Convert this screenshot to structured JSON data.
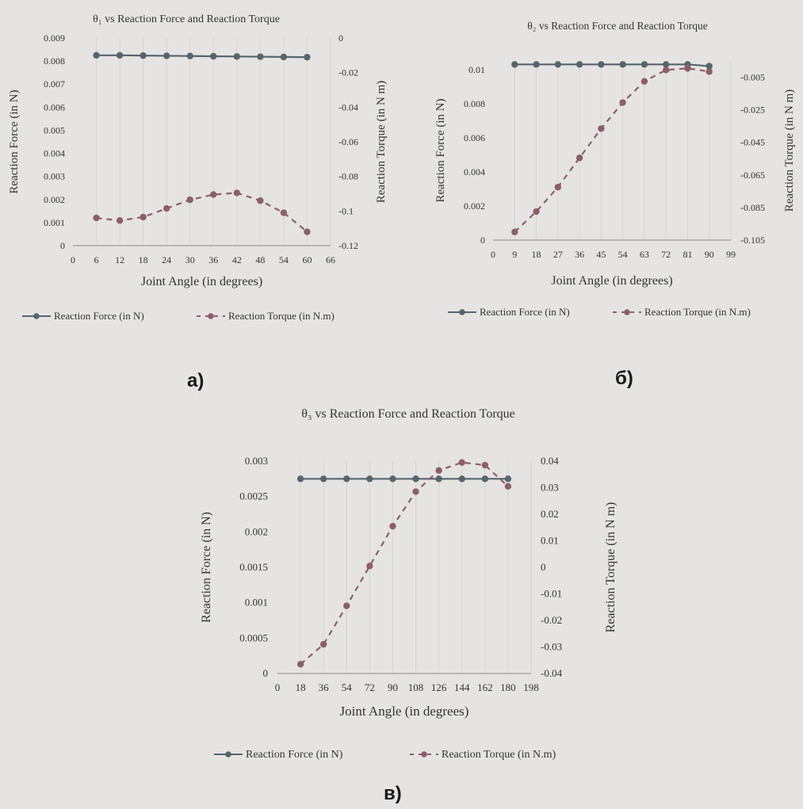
{
  "colors": {
    "force": "#56656c",
    "torque": "#8c5f68",
    "grid": "#d6d5d3",
    "axis": "#8a8a8a"
  },
  "panels": {
    "a": "а)",
    "b": "б)",
    "c": "в)"
  },
  "chart_data": [
    {
      "type": "line",
      "title": "θ₁ vs Reaction Force and Reaction Torque",
      "xlabel": "Joint Angle (in degrees)",
      "ylabel": "Reaction Force (in N)",
      "y2label": "Reaction Torque (in N m)",
      "xlim": [
        0,
        66
      ],
      "xticks": [
        0,
        6,
        12,
        18,
        24,
        30,
        36,
        42,
        48,
        54,
        60,
        66
      ],
      "xtick_labels": [
        "0",
        "6",
        "12",
        "18",
        "24",
        "30",
        "36",
        "42",
        "48",
        "54",
        "60",
        "66"
      ],
      "ylim": [
        0,
        0.009
      ],
      "yticks": [
        0,
        0.001,
        0.002,
        0.003,
        0.004,
        0.005,
        0.006,
        0.007,
        0.008,
        0.009
      ],
      "ytick_labels": [
        "0",
        "0.001",
        "0.002",
        "0.003",
        "0.004",
        "0.005",
        "0.006",
        "0.007",
        "0.008",
        "0.009"
      ],
      "y2lim": [
        -0.12,
        0
      ],
      "y2ticks": [
        -0.12,
        -0.1,
        -0.08,
        -0.06,
        -0.04,
        -0.02,
        0
      ],
      "y2tick_labels": [
        "-0.12",
        "-0.1",
        "-0.08",
        "-0.06",
        "-0.04",
        "-0.02",
        "0"
      ],
      "x": [
        6,
        12,
        18,
        24,
        30,
        36,
        42,
        48,
        54,
        60
      ],
      "series": [
        {
          "name": "Reaction Force (in N)",
          "axis": "left",
          "style": "solid",
          "values": [
            0.00825,
            0.00825,
            0.00824,
            0.00823,
            0.00822,
            0.00821,
            0.0082,
            0.00819,
            0.00818,
            0.00817
          ]
        },
        {
          "name": "Reaction Torque (in N.m)",
          "axis": "right",
          "style": "dashed",
          "values": [
            -0.104,
            -0.1055,
            -0.1035,
            -0.0985,
            -0.0935,
            -0.0905,
            -0.0895,
            -0.094,
            -0.101,
            -0.112
          ]
        }
      ],
      "legend": "bottom",
      "grid": true
    },
    {
      "type": "line",
      "title": "θ₂ vs Reaction Force and Reaction Torque",
      "xlabel": "Joint Angle (in degrees)",
      "ylabel": "Reaction Force (in N)",
      "y2label": "Reaction Torque (in N m)",
      "xlim": [
        0,
        99
      ],
      "xticks": [
        0,
        9,
        18,
        27,
        36,
        45,
        54,
        63,
        72,
        81,
        90,
        99
      ],
      "xtick_labels": [
        "0",
        "9",
        "18",
        "27",
        "36",
        "45",
        "54",
        "63",
        "72",
        "81",
        "90",
        "99"
      ],
      "ylim": [
        0,
        0.0105
      ],
      "yticks": [
        0,
        0.002,
        0.004,
        0.006,
        0.008,
        0.01
      ],
      "ytick_labels": [
        "0",
        "0.002",
        "0.004",
        "0.006",
        "0.008",
        "0.01"
      ],
      "y2lim": [
        -0.105,
        0.005
      ],
      "y2ticks": [
        -0.105,
        -0.085,
        -0.065,
        -0.045,
        -0.025,
        -0.005
      ],
      "y2tick_labels": [
        "-0.105",
        "-0.085",
        "-0.065",
        "-0.045",
        "-0.025",
        "-0.005"
      ],
      "x": [
        9,
        18,
        27,
        36,
        45,
        54,
        63,
        72,
        81,
        90
      ],
      "series": [
        {
          "name": "Reaction Force (in N)",
          "axis": "left",
          "style": "solid",
          "values": [
            0.0103,
            0.0103,
            0.0103,
            0.0103,
            0.0103,
            0.0103,
            0.0103,
            0.0103,
            0.0103,
            0.0102
          ]
        },
        {
          "name": "Reaction Torque (in N.m)",
          "axis": "right",
          "style": "dashed",
          "values": [
            -0.1,
            -0.0875,
            -0.0725,
            -0.0545,
            -0.0365,
            -0.0205,
            -0.0075,
            -0.0005,
            0.0005,
            -0.0015
          ]
        }
      ],
      "legend": "bottom",
      "grid": true
    },
    {
      "type": "line",
      "title": "θ₃ vs Reaction Force and Reaction Torque",
      "xlabel": "Joint Angle (in degrees)",
      "ylabel": "Reaction Force (in N)",
      "y2label": "Reaction Torque (in N m)",
      "xlim": [
        0,
        198
      ],
      "xticks": [
        0,
        18,
        36,
        54,
        72,
        90,
        108,
        126,
        144,
        162,
        180,
        198
      ],
      "xtick_labels": [
        "0",
        "18",
        "36",
        "54",
        "72",
        "90",
        "108",
        "126",
        "144",
        "162",
        "180",
        "198"
      ],
      "ylim": [
        0,
        0.003
      ],
      "yticks": [
        0,
        0.0005,
        0.001,
        0.0015,
        0.002,
        0.0025,
        0.003
      ],
      "ytick_labels": [
        "0",
        "0.0005",
        "0.001",
        "0.0015",
        "0.002",
        "0.0025",
        "0.003"
      ],
      "y2lim": [
        -0.04,
        0.04
      ],
      "y2ticks": [
        -0.04,
        -0.03,
        -0.02,
        -0.01,
        0,
        0.01,
        0.02,
        0.03,
        0.04
      ],
      "y2tick_labels": [
        "-0.04",
        "-0.03",
        "-0.02",
        "-0.01",
        "0",
        "0.01",
        "0.02",
        "0.03",
        "0.04"
      ],
      "x": [
        18,
        36,
        54,
        72,
        90,
        108,
        126,
        144,
        162,
        180
      ],
      "series": [
        {
          "name": "Reaction Force (in N)",
          "axis": "left",
          "style": "solid",
          "values": [
            0.00275,
            0.00275,
            0.00275,
            0.00275,
            0.00275,
            0.00275,
            0.00275,
            0.00275,
            0.00275,
            0.00275
          ]
        },
        {
          "name": "Reaction Torque (in N.m)",
          "axis": "right",
          "style": "dashed",
          "values": [
            -0.0365,
            -0.029,
            -0.0145,
            0.0005,
            0.0155,
            0.0285,
            0.0365,
            0.0395,
            0.0385,
            0.0305
          ]
        }
      ],
      "legend": "bottom",
      "grid": true
    }
  ]
}
